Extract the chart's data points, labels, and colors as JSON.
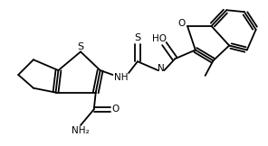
{
  "background_color": "#ffffff",
  "line_color": "#000000",
  "line_width": 1.3,
  "font_size": 7.5,
  "figsize": [
    2.96,
    1.62
  ],
  "dpi": 100,
  "xlim": [
    0,
    296
  ],
  "ylim": [
    0,
    162
  ]
}
